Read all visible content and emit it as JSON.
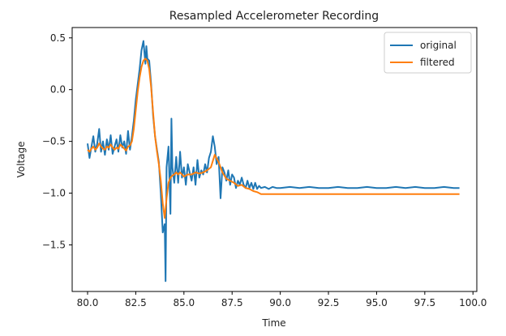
{
  "chart_data": {
    "type": "line",
    "title": "Resampled Accelerometer Recording",
    "xlabel": "Time",
    "ylabel": "Voltage",
    "xlim": [
      79.2,
      100.2
    ],
    "ylim": [
      -1.95,
      0.6
    ],
    "xticks": [
      80.0,
      82.5,
      85.0,
      87.5,
      90.0,
      92.5,
      95.0,
      97.5,
      100.0
    ],
    "xtick_labels": [
      "80.0",
      "82.5",
      "85.0",
      "87.5",
      "90.0",
      "92.5",
      "95.0",
      "97.5",
      "100.0"
    ],
    "yticks": [
      0.5,
      0.0,
      -0.5,
      -1.0,
      -1.5
    ],
    "ytick_labels": [
      "0.5",
      "0.0",
      "−0.5",
      "−1.0",
      "−1.5"
    ],
    "grid": false,
    "legend_position": "top-right",
    "series": [
      {
        "name": "original",
        "color": "#1f77b4",
        "x": [
          80.0,
          80.1,
          80.2,
          80.3,
          80.4,
          80.5,
          80.6,
          80.7,
          80.8,
          80.9,
          81.0,
          81.1,
          81.2,
          81.3,
          81.4,
          81.5,
          81.6,
          81.7,
          81.8,
          81.9,
          82.0,
          82.1,
          82.2,
          82.3,
          82.4,
          82.5,
          82.6,
          82.7,
          82.8,
          82.9,
          83.0,
          83.05,
          83.1,
          83.2,
          83.3,
          83.4,
          83.5,
          83.6,
          83.7,
          83.8,
          83.9,
          84.0,
          84.05,
          84.1,
          84.2,
          84.3,
          84.35,
          84.4,
          84.5,
          84.6,
          84.7,
          84.8,
          84.9,
          85.0,
          85.1,
          85.2,
          85.3,
          85.4,
          85.5,
          85.6,
          85.7,
          85.8,
          85.9,
          86.0,
          86.1,
          86.2,
          86.3,
          86.4,
          86.5,
          86.6,
          86.7,
          86.8,
          86.9,
          87.0,
          87.1,
          87.2,
          87.3,
          87.4,
          87.5,
          87.6,
          87.7,
          87.8,
          87.9,
          88.0,
          88.1,
          88.2,
          88.3,
          88.4,
          88.5,
          88.6,
          88.7,
          88.8,
          88.9,
          89.0,
          89.2,
          89.4,
          89.6,
          89.8,
          90.0,
          90.5,
          91.0,
          91.5,
          92.0,
          92.5,
          93.0,
          93.5,
          94.0,
          94.5,
          95.0,
          95.5,
          96.0,
          96.5,
          97.0,
          97.5,
          98.0,
          98.5,
          99.0,
          99.3
        ],
        "y": [
          -0.52,
          -0.66,
          -0.55,
          -0.45,
          -0.6,
          -0.52,
          -0.38,
          -0.6,
          -0.5,
          -0.63,
          -0.48,
          -0.58,
          -0.44,
          -0.62,
          -0.55,
          -0.48,
          -0.6,
          -0.44,
          -0.56,
          -0.5,
          -0.62,
          -0.4,
          -0.58,
          -0.45,
          -0.3,
          -0.1,
          0.05,
          0.2,
          0.38,
          0.47,
          0.25,
          0.42,
          0.3,
          0.28,
          0.05,
          -0.25,
          -0.45,
          -0.58,
          -0.7,
          -1.0,
          -1.38,
          -1.3,
          -1.85,
          -0.75,
          -0.55,
          -1.2,
          -0.28,
          -0.75,
          -0.9,
          -0.65,
          -0.9,
          -0.6,
          -0.85,
          -0.75,
          -0.92,
          -0.72,
          -0.8,
          -0.88,
          -0.75,
          -0.92,
          -0.68,
          -0.85,
          -0.78,
          -0.82,
          -0.72,
          -0.8,
          -0.66,
          -0.6,
          -0.45,
          -0.55,
          -0.72,
          -0.65,
          -1.05,
          -0.75,
          -0.8,
          -0.88,
          -0.78,
          -0.92,
          -0.82,
          -0.85,
          -0.95,
          -0.88,
          -0.92,
          -0.85,
          -0.92,
          -0.95,
          -0.88,
          -0.95,
          -0.9,
          -0.96,
          -0.9,
          -0.96,
          -0.93,
          -0.95,
          -0.94,
          -0.96,
          -0.94,
          -0.95,
          -0.95,
          -0.94,
          -0.95,
          -0.94,
          -0.95,
          -0.95,
          -0.94,
          -0.95,
          -0.95,
          -0.94,
          -0.95,
          -0.95,
          -0.94,
          -0.95,
          -0.94,
          -0.95,
          -0.95,
          -0.94,
          -0.95,
          -0.95
        ]
      },
      {
        "name": "filtered",
        "color": "#ff7f0e",
        "x": [
          80.0,
          80.1,
          80.2,
          80.3,
          80.4,
          80.5,
          80.6,
          80.7,
          80.8,
          80.9,
          81.0,
          81.1,
          81.2,
          81.3,
          81.4,
          81.5,
          81.6,
          81.7,
          81.8,
          81.9,
          82.0,
          82.1,
          82.2,
          82.3,
          82.4,
          82.5,
          82.6,
          82.7,
          82.8,
          82.9,
          83.0,
          83.1,
          83.2,
          83.3,
          83.4,
          83.5,
          83.6,
          83.7,
          83.8,
          83.9,
          84.0,
          84.1,
          84.2,
          84.3,
          84.4,
          84.5,
          84.6,
          84.7,
          84.8,
          84.9,
          85.0,
          85.2,
          85.4,
          85.6,
          85.8,
          86.0,
          86.2,
          86.4,
          86.6,
          86.8,
          87.0,
          87.2,
          87.4,
          87.6,
          87.8,
          88.0,
          88.2,
          88.4,
          88.6,
          88.8,
          89.0,
          89.5,
          90.0,
          91.0,
          92.0,
          93.0,
          94.0,
          95.0,
          96.0,
          97.0,
          98.0,
          99.0,
          99.3
        ],
        "y": [
          -0.58,
          -0.6,
          -0.57,
          -0.55,
          -0.58,
          -0.56,
          -0.52,
          -0.55,
          -0.57,
          -0.58,
          -0.55,
          -0.56,
          -0.53,
          -0.56,
          -0.58,
          -0.56,
          -0.57,
          -0.53,
          -0.55,
          -0.57,
          -0.59,
          -0.55,
          -0.54,
          -0.5,
          -0.38,
          -0.2,
          -0.02,
          0.12,
          0.22,
          0.28,
          0.3,
          0.28,
          0.2,
          0.02,
          -0.22,
          -0.45,
          -0.6,
          -0.72,
          -0.88,
          -1.1,
          -1.24,
          -1.05,
          -0.9,
          -0.85,
          -0.83,
          -0.82,
          -0.8,
          -0.82,
          -0.8,
          -0.82,
          -0.84,
          -0.82,
          -0.82,
          -0.8,
          -0.81,
          -0.8,
          -0.78,
          -0.75,
          -0.63,
          -0.7,
          -0.8,
          -0.86,
          -0.88,
          -0.9,
          -0.93,
          -0.92,
          -0.95,
          -0.96,
          -0.98,
          -0.99,
          -1.01,
          -1.01,
          -1.01,
          -1.01,
          -1.01,
          -1.01,
          -1.01,
          -1.01,
          -1.01,
          -1.01,
          -1.01,
          -1.01,
          -1.01
        ]
      }
    ]
  }
}
